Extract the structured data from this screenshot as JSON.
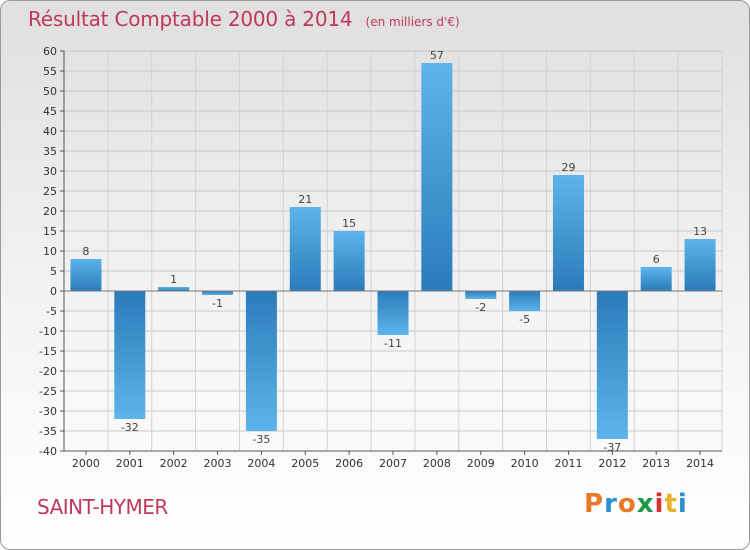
{
  "chart_data": {
    "type": "bar",
    "title": "Résultat Comptable 2000 à 2014",
    "subtitle": "(en milliers d'€)",
    "categories": [
      "2000",
      "2001",
      "2002",
      "2003",
      "2004",
      "2005",
      "2006",
      "2007",
      "2008",
      "2009",
      "2010",
      "2011",
      "2012",
      "2013",
      "2014"
    ],
    "values": [
      8,
      -32,
      1,
      -1,
      -35,
      21,
      15,
      -11,
      57,
      -2,
      -5,
      29,
      -37,
      6,
      13
    ],
    "xlabel": "",
    "ylabel": "",
    "ylim": [
      -40,
      60
    ],
    "ytick_step": 5,
    "grid": true,
    "colors": {
      "bar_light": "#5db4ea",
      "bar_dark": "#2a7cb9",
      "title": "#c0395a"
    }
  },
  "footer": {
    "commune": "SAINT-HYMER",
    "logo": "Proxiti"
  }
}
